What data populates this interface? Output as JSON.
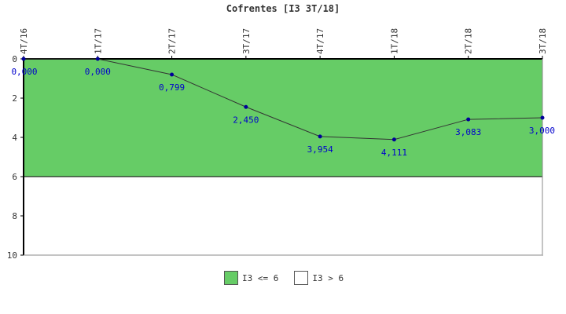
{
  "chart_data": {
    "type": "line",
    "title": "Cofrentes [I3 3T/18]",
    "x": [
      "4T/16",
      "1T/17",
      "2T/17",
      "3T/17",
      "4T/17",
      "1T/18",
      "2T/18",
      "3T/18"
    ],
    "series": [
      {
        "values": [
          0.0,
          0.0,
          0.799,
          2.45,
          3.954,
          4.111,
          3.083,
          3.0
        ]
      }
    ],
    "data_labels": [
      "0,000",
      "0,000",
      "0,799",
      "2,450",
      "3,954",
      "4,111",
      "3,083",
      "3,000"
    ],
    "y_ticks": [
      "0",
      "2",
      "4",
      "6",
      "8",
      "10"
    ],
    "ylim": [
      0,
      10
    ],
    "y_inverted": true,
    "threshold": 6,
    "bands": [
      {
        "label": "I3 <= 6",
        "from": 0,
        "to": 6,
        "color": "#66cc66"
      },
      {
        "label": "I3 > 6",
        "from": 6,
        "to": 10,
        "color": "#ffffff"
      }
    ],
    "line_color": "#333333",
    "marker_color": "#000099",
    "label_color": "#0000cc"
  }
}
